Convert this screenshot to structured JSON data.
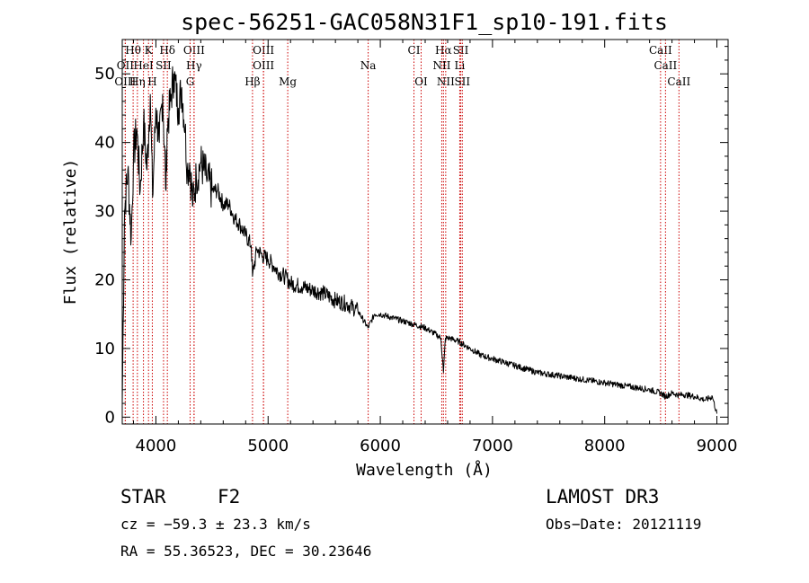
{
  "chart_data": {
    "type": "line",
    "title": "spec-56251-GAC058N31F1_sp10-191.fits",
    "xlabel": "Wavelength (Å)",
    "ylabel": "Flux (relative)",
    "xlim": [
      3700,
      9100
    ],
    "ylim": [
      -1,
      55
    ],
    "xticks": [
      4000,
      5000,
      6000,
      7000,
      8000,
      9000
    ],
    "yticks": [
      0,
      10,
      20,
      30,
      40,
      50
    ],
    "line_color": "#000000",
    "marker_color": "#cc0000",
    "series": [
      {
        "name": "spectrum",
        "x": [
          3700,
          3720,
          3750,
          3780,
          3800,
          3830,
          3860,
          3890,
          3920,
          3950,
          3970,
          4000,
          4030,
          4060,
          4090,
          4100,
          4130,
          4160,
          4200,
          4230,
          4260,
          4280,
          4300,
          4330,
          4360,
          4400,
          4450,
          4500,
          4550,
          4600,
          4650,
          4700,
          4750,
          4800,
          4850,
          4861,
          4900,
          4950,
          5000,
          5050,
          5100,
          5150,
          5200,
          5300,
          5400,
          5500,
          5600,
          5700,
          5800,
          5890,
          5950,
          6000,
          6100,
          6200,
          6300,
          6400,
          6500,
          6540,
          6563,
          6580,
          6620,
          6700,
          6800,
          6900,
          7000,
          7200,
          7400,
          7600,
          7800,
          8000,
          8200,
          8400,
          8500,
          8542,
          8600,
          8662,
          8700,
          8800,
          8900,
          8960,
          9000
        ],
        "y": [
          2,
          30,
          36,
          26,
          38,
          42,
          33,
          43,
          36,
          47,
          32,
          45,
          40,
          47,
          33,
          42,
          46,
          50,
          45,
          48,
          42,
          36,
          37,
          31,
          35,
          37,
          35,
          33,
          33,
          31,
          31,
          29,
          28,
          26.5,
          25,
          20.5,
          24.5,
          23.5,
          23,
          22,
          21,
          20.5,
          19.5,
          19,
          18.5,
          18,
          17,
          16.5,
          15.5,
          13,
          15,
          15,
          14.5,
          14,
          13.5,
          13,
          12,
          11.5,
          6.5,
          11.5,
          11.5,
          11,
          10,
          9,
          8.5,
          7.5,
          6.5,
          6,
          5.5,
          5,
          4.5,
          4,
          3.5,
          3,
          3.5,
          3.2,
          3.3,
          3,
          2.5,
          3,
          0.5
        ]
      }
    ],
    "line_markers": [
      {
        "label": "Hθ",
        "x": 3797,
        "row": 0
      },
      {
        "label": "K",
        "x": 3934,
        "row": 0
      },
      {
        "label": "Hδ",
        "x": 4102,
        "row": 0
      },
      {
        "label": "OIII",
        "x": 4340,
        "row": 0
      },
      {
        "label": "OIII",
        "x": 4959,
        "row": 0
      },
      {
        "label": "CI",
        "x": 6300,
        "row": 0
      },
      {
        "label": "Hα",
        "x": 6563,
        "row": 0
      },
      {
        "label": "SII",
        "x": 6717,
        "row": 0
      },
      {
        "label": "CaII",
        "x": 8498,
        "row": 0
      },
      {
        "label": "OII",
        "x": 3727,
        "row": 1
      },
      {
        "label": "HeI",
        "x": 3889,
        "row": 1
      },
      {
        "label": "SII",
        "x": 4068,
        "row": 1
      },
      {
        "label": "Hγ",
        "x": 4340,
        "row": 1
      },
      {
        "label": "OIII",
        "x": 4959,
        "row": 1
      },
      {
        "label": "Na",
        "x": 5892,
        "row": 1
      },
      {
        "label": "NII",
        "x": 6548,
        "row": 1
      },
      {
        "label": "Li",
        "x": 6708,
        "row": 1
      },
      {
        "label": "CaII",
        "x": 8542,
        "row": 1
      },
      {
        "label": "OIII",
        "x": 3727,
        "row": 2
      },
      {
        "label": "Hη",
        "x": 3835,
        "row": 2
      },
      {
        "label": "H",
        "x": 3968,
        "row": 2
      },
      {
        "label": "G",
        "x": 4305,
        "row": 2
      },
      {
        "label": "Hβ",
        "x": 4861,
        "row": 2
      },
      {
        "label": "Mg",
        "x": 5175,
        "row": 2
      },
      {
        "label": "OI",
        "x": 6364,
        "row": 2
      },
      {
        "label": "NII",
        "x": 6583,
        "row": 2
      },
      {
        "label": "SII",
        "x": 6731,
        "row": 2
      },
      {
        "label": "CaII",
        "x": 8662,
        "row": 2
      }
    ]
  },
  "info": {
    "object_class": "STAR",
    "subclass": "F2",
    "survey": "LAMOST DR3",
    "cz": "cz = −59.3 ± 23.3 km/s",
    "obs_date": "Obs−Date: 20121119",
    "coords": "RA =  55.36523, DEC =  30.23646"
  }
}
